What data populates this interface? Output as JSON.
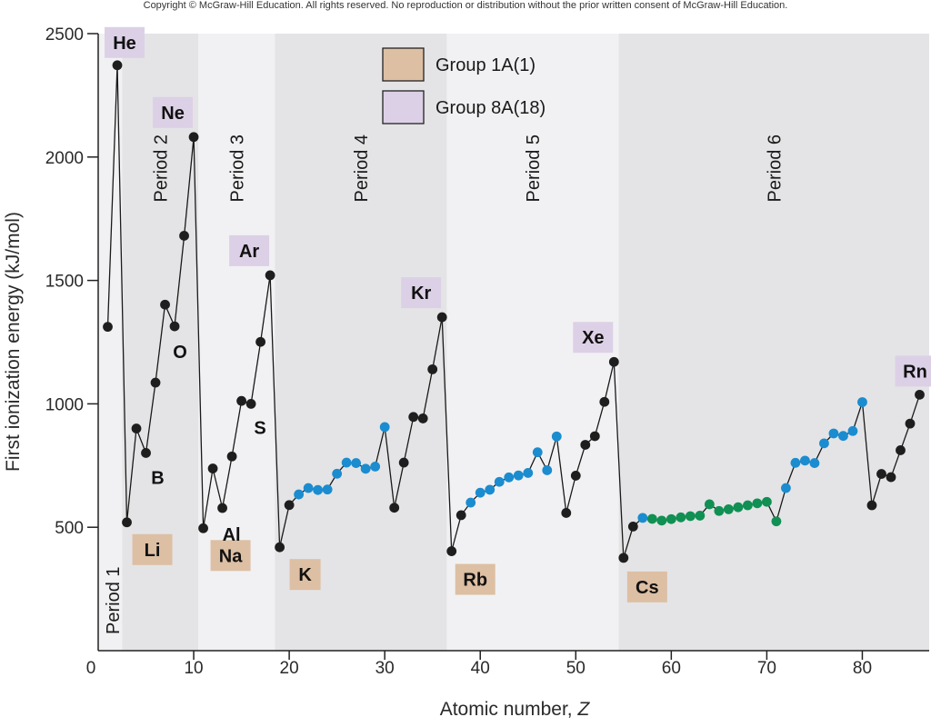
{
  "copyright": "Copyright © McGraw-Hill Education.  All rights reserved. No reproduction or distribution without the prior written consent of McGraw-Hill Education.",
  "colors": {
    "group1a": "#ddbfa4",
    "group8a": "#dcd0e6",
    "band_dark": "#e4e4e6",
    "band_light": "#f1f1f3",
    "main_group": "#1e1e1e",
    "transition": "#1b8ccf",
    "inner_transition": "#109053"
  },
  "chart_data": {
    "type": "line",
    "xlabel": "Atomic number,",
    "xlabel_var": "Z",
    "ylabel": "First ionization energy (kJ/mol)",
    "xlim": [
      0,
      87
    ],
    "ylim": [
      0,
      2500
    ],
    "xticks": [
      "0",
      "10",
      "20",
      "30",
      "40",
      "50",
      "60",
      "70",
      "80"
    ],
    "yticks": [
      "500",
      "1000",
      "1500",
      "2000",
      "2500"
    ],
    "x": [
      1,
      2,
      3,
      4,
      5,
      6,
      7,
      8,
      9,
      10,
      11,
      12,
      13,
      14,
      15,
      16,
      17,
      18,
      19,
      20,
      21,
      22,
      23,
      24,
      25,
      26,
      27,
      28,
      29,
      30,
      31,
      32,
      33,
      34,
      35,
      36,
      37,
      38,
      39,
      40,
      41,
      42,
      43,
      44,
      45,
      46,
      47,
      48,
      49,
      50,
      51,
      52,
      53,
      54,
      55,
      56,
      57,
      58,
      59,
      60,
      61,
      62,
      63,
      64,
      65,
      66,
      67,
      68,
      69,
      70,
      71,
      72,
      73,
      74,
      75,
      76,
      77,
      78,
      79,
      80,
      81,
      82,
      83,
      84,
      85,
      86
    ],
    "y": [
      1312,
      2372,
      520,
      900,
      801,
      1086,
      1402,
      1314,
      1681,
      2081,
      496,
      738,
      578,
      787,
      1012,
      1000,
      1251,
      1521,
      419,
      590,
      633,
      659,
      651,
      653,
      717,
      762,
      760,
      737,
      746,
      906,
      579,
      762,
      947,
      941,
      1140,
      1351,
      403,
      549,
      600,
      640,
      652,
      684,
      702,
      710,
      720,
      804,
      731,
      868,
      558,
      709,
      834,
      869,
      1008,
      1170,
      376,
      503,
      538,
      534,
      527,
      533,
      540,
      545,
      547,
      593,
      566,
      573,
      581,
      589,
      597,
      603,
      524,
      659,
      761,
      770,
      760,
      840,
      880,
      870,
      890,
      1007,
      589,
      716,
      703,
      812,
      920,
      1037
    ],
    "categories": [
      "main",
      "main",
      "main",
      "main",
      "main",
      "main",
      "main",
      "main",
      "main",
      "main",
      "main",
      "main",
      "main",
      "main",
      "main",
      "main",
      "main",
      "main",
      "main",
      "main",
      "transition",
      "transition",
      "transition",
      "transition",
      "transition",
      "transition",
      "transition",
      "transition",
      "transition",
      "transition",
      "main",
      "main",
      "main",
      "main",
      "main",
      "main",
      "main",
      "main",
      "transition",
      "transition",
      "transition",
      "transition",
      "transition",
      "transition",
      "transition",
      "transition",
      "transition",
      "transition",
      "main",
      "main",
      "main",
      "main",
      "main",
      "main",
      "main",
      "main",
      "transition",
      "inner",
      "inner",
      "inner",
      "inner",
      "inner",
      "inner",
      "inner",
      "inner",
      "inner",
      "inner",
      "inner",
      "inner",
      "inner",
      "inner",
      "transition",
      "transition",
      "transition",
      "transition",
      "transition",
      "transition",
      "transition",
      "transition",
      "transition",
      "main",
      "main",
      "main",
      "main",
      "main",
      "main"
    ],
    "periods": [
      {
        "label": "Period 1",
        "start": 0.0,
        "end": 2.5,
        "shade": "band_light",
        "label_pos": "bottom"
      },
      {
        "label": "Period 2",
        "start": 2.5,
        "end": 10.5,
        "shade": "band_dark",
        "label_pos": "top"
      },
      {
        "label": "Period 3",
        "start": 10.5,
        "end": 18.5,
        "shade": "band_light",
        "label_pos": "top"
      },
      {
        "label": "Period 4",
        "start": 18.5,
        "end": 36.5,
        "shade": "band_dark",
        "label_pos": "top"
      },
      {
        "label": "Period 5",
        "start": 36.5,
        "end": 54.5,
        "shade": "band_light",
        "label_pos": "top"
      },
      {
        "label": "Period 6",
        "start": 54.5,
        "end": 87.0,
        "shade": "band_dark",
        "label_pos": "top"
      }
    ],
    "element_labels": [
      {
        "symbol": "He",
        "z": 2,
        "y": 2372,
        "box": "group8a",
        "place": "above"
      },
      {
        "symbol": "Ne",
        "z": 10,
        "y": 2081,
        "box": "group8a",
        "place": "above-left"
      },
      {
        "symbol": "Ar",
        "z": 18,
        "y": 1521,
        "box": "group8a",
        "place": "above-left"
      },
      {
        "symbol": "Kr",
        "z": 36,
        "y": 1351,
        "box": "group8a",
        "place": "above-left"
      },
      {
        "symbol": "Xe",
        "z": 54,
        "y": 1170,
        "box": "group8a",
        "place": "above-left"
      },
      {
        "symbol": "Rn",
        "z": 86,
        "y": 1037,
        "box": "group8a",
        "place": "above"
      },
      {
        "symbol": "Li",
        "z": 3,
        "y": 520,
        "box": "group1a",
        "place": "below-right"
      },
      {
        "symbol": "Na",
        "z": 11,
        "y": 496,
        "box": "group1a",
        "place": "below-right"
      },
      {
        "symbol": "K",
        "z": 19,
        "y": 419,
        "box": "group1a",
        "place": "below-right"
      },
      {
        "symbol": "Rb",
        "z": 37,
        "y": 403,
        "box": "group1a",
        "place": "below-right"
      },
      {
        "symbol": "Cs",
        "z": 55,
        "y": 376,
        "box": "group1a",
        "place": "below-right"
      },
      {
        "symbol": "B",
        "z": 5,
        "y": 801,
        "box": "none",
        "place": "below-right"
      },
      {
        "symbol": "O",
        "z": 8,
        "y": 1314,
        "box": "none",
        "place": "below"
      },
      {
        "symbol": "Al",
        "z": 13,
        "y": 578,
        "box": "none",
        "place": "below-right"
      },
      {
        "symbol": "S",
        "z": 16,
        "y": 1000,
        "box": "none",
        "place": "below-right"
      }
    ],
    "legend": {
      "placement": "top-center",
      "entries": [
        {
          "label": "Group 1A(1)",
          "color_key": "group1a"
        },
        {
          "label": "Group 8A(18)",
          "color_key": "group8a"
        }
      ]
    }
  }
}
